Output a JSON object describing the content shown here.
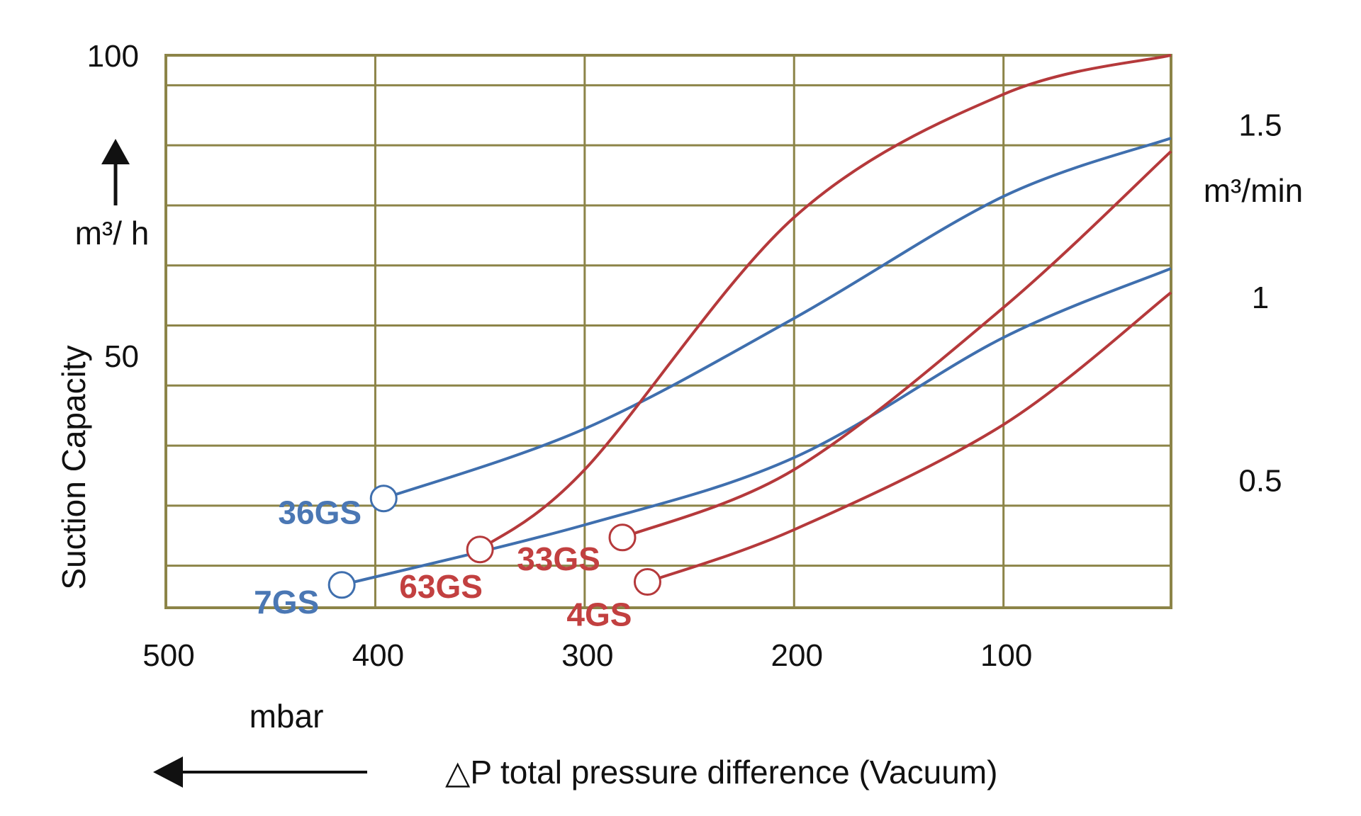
{
  "chart_data": {
    "type": "line",
    "xlabel": "△P total pressure difference (Vacuum)",
    "x_unit": "mbar",
    "ylabel": "Suction Capacity",
    "y_unit_left": "m³/ h",
    "y_unit_right": "m³/min",
    "xlim": [
      500,
      20
    ],
    "ylim": [
      8,
      100
    ],
    "x_ticks": [
      500,
      400,
      300,
      200,
      100
    ],
    "x_tick_labels": [
      "500",
      "400",
      "300",
      "200",
      "100"
    ],
    "y_ticks_left": [
      50,
      100
    ],
    "y_tick_labels_left": [
      "50",
      "100"
    ],
    "y_ticks_right": [
      {
        "label": "1.5",
        "value_m3h": 88.5
      },
      {
        "label": "1",
        "value_m3h": 59.8
      },
      {
        "label": "0.5",
        "value_m3h": 29.3
      }
    ],
    "grid": true,
    "series": [
      {
        "name": "36GS",
        "color": "#3f6fae",
        "label_color": "#4a77b4",
        "points": [
          [
            396,
            26.2
          ],
          [
            300,
            37.8
          ],
          [
            200,
            56.2
          ],
          [
            100,
            76.5
          ],
          [
            20,
            86.2
          ]
        ]
      },
      {
        "name": "7GS",
        "color": "#3f6fae",
        "label_color": "#4a77b4",
        "points": [
          [
            416,
            11.8
          ],
          [
            300,
            21.8
          ],
          [
            200,
            33.0
          ],
          [
            100,
            53.0
          ],
          [
            20,
            64.5
          ]
        ]
      },
      {
        "name": "63GS",
        "color": "#b5393b",
        "label_color": "#c24040",
        "points": [
          [
            350,
            17.7
          ],
          [
            300,
            31.0
          ],
          [
            200,
            73.0
          ],
          [
            100,
            93.5
          ],
          [
            20,
            100.0
          ]
        ]
      },
      {
        "name": "33GS",
        "color": "#b5393b",
        "label_color": "#c24040",
        "points": [
          [
            282,
            19.7
          ],
          [
            200,
            31.0
          ],
          [
            100,
            58.0
          ],
          [
            20,
            84.0
          ]
        ]
      },
      {
        "name": "4GS",
        "color": "#b5393b",
        "label_color": "#c24040",
        "points": [
          [
            270,
            12.3
          ],
          [
            200,
            21.0
          ],
          [
            100,
            38.5
          ],
          [
            20,
            60.5
          ]
        ]
      }
    ]
  }
}
